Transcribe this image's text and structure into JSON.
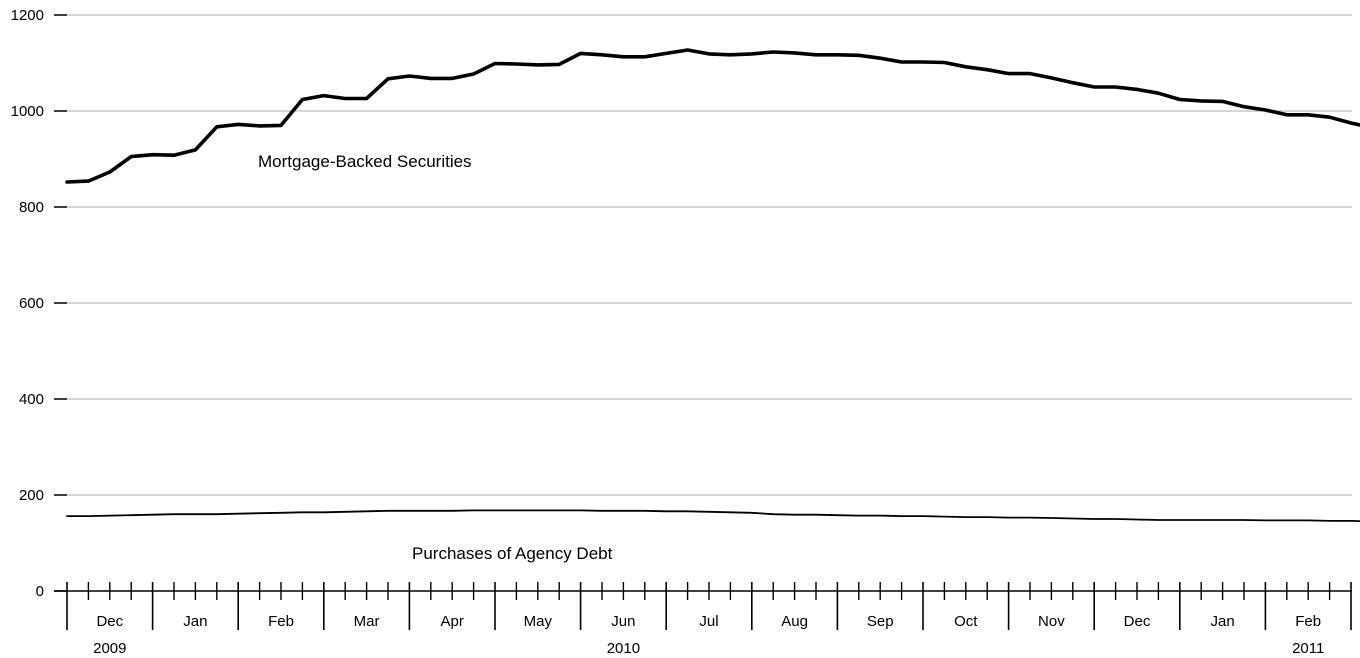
{
  "chart_data": {
    "type": "line",
    "title": "",
    "xlabel": "",
    "ylabel": "",
    "ylim": [
      0,
      1200
    ],
    "y_ticks": [
      0,
      200,
      400,
      600,
      800,
      1000,
      1200
    ],
    "y_tick_labels": [
      "0",
      "200",
      "400",
      "600",
      "800",
      "1000",
      "1200"
    ],
    "grid": true,
    "x_months": [
      "Dec",
      "Jan",
      "Feb",
      "Mar",
      "Apr",
      "May",
      "Jun",
      "Jul",
      "Aug",
      "Sep",
      "Oct",
      "Nov",
      "Dec",
      "Jan",
      "Feb"
    ],
    "x_years": [
      {
        "label": "2009",
        "month_index": 0
      },
      {
        "label": "2010",
        "month_index": 6
      },
      {
        "label": "2011",
        "month_index": 14
      }
    ],
    "x_start": "2009-11-18",
    "weeks_per_month": 4,
    "x": [
      "2009-11-18",
      "2009-11-25",
      "2009-12-02",
      "2009-12-09",
      "2009-12-16",
      "2009-12-23",
      "2009-12-30",
      "2010-01-06",
      "2010-01-13",
      "2010-01-20",
      "2010-01-27",
      "2010-02-03",
      "2010-02-10",
      "2010-02-17",
      "2010-02-24",
      "2010-03-03",
      "2010-03-10",
      "2010-03-17",
      "2010-03-24",
      "2010-03-31",
      "2010-04-07",
      "2010-04-14",
      "2010-04-21",
      "2010-04-28",
      "2010-05-05",
      "2010-05-12",
      "2010-05-19",
      "2010-05-26",
      "2010-06-02",
      "2010-06-09",
      "2010-06-16",
      "2010-06-23",
      "2010-06-30",
      "2010-07-07",
      "2010-07-14",
      "2010-07-21",
      "2010-07-28",
      "2010-08-04",
      "2010-08-11",
      "2010-08-18",
      "2010-08-25",
      "2010-09-01",
      "2010-09-08",
      "2010-09-15",
      "2010-09-22",
      "2010-09-29",
      "2010-10-06",
      "2010-10-13",
      "2010-10-20",
      "2010-10-27",
      "2010-11-03",
      "2010-11-10",
      "2010-11-17",
      "2010-11-24",
      "2010-12-01",
      "2010-12-08",
      "2010-12-15",
      "2010-12-22",
      "2010-12-29",
      "2011-01-05",
      "2011-01-12",
      "2011-01-19",
      "2011-01-26"
    ],
    "series": [
      {
        "name": "Mortgage-Backed Securities",
        "label_text": "Mortgage-Backed Securities",
        "values": [
          852,
          854,
          873,
          905,
          909,
          908,
          919,
          967,
          972,
          969,
          970,
          1024,
          1032,
          1026,
          1026,
          1067,
          1073,
          1068,
          1068,
          1077,
          1099,
          1098,
          1096,
          1097,
          1120,
          1117,
          1113,
          1113,
          1120,
          1127,
          1119,
          1117,
          1119,
          1123,
          1121,
          1117,
          1117,
          1116,
          1110,
          1102,
          1102,
          1101,
          1092,
          1086,
          1078,
          1078,
          1069,
          1059,
          1050,
          1050,
          1045,
          1037,
          1024,
          1021,
          1020,
          1009,
          1002,
          992,
          992,
          987,
          975,
          965,
          965
        ]
      },
      {
        "name": "Purchases of Agency Debt",
        "label_text": "Purchases of Agency Debt",
        "values": [
          156,
          156,
          157,
          158,
          159,
          160,
          160,
          160,
          161,
          162,
          163,
          164,
          164,
          165,
          166,
          167,
          167,
          167,
          167,
          168,
          168,
          168,
          168,
          168,
          168,
          167,
          167,
          167,
          166,
          166,
          165,
          164,
          163,
          160,
          159,
          159,
          158,
          157,
          157,
          156,
          156,
          155,
          154,
          154,
          153,
          153,
          152,
          151,
          150,
          150,
          149,
          148,
          148,
          148,
          148,
          148,
          147,
          147,
          147,
          146,
          146,
          145,
          145
        ]
      }
    ]
  }
}
